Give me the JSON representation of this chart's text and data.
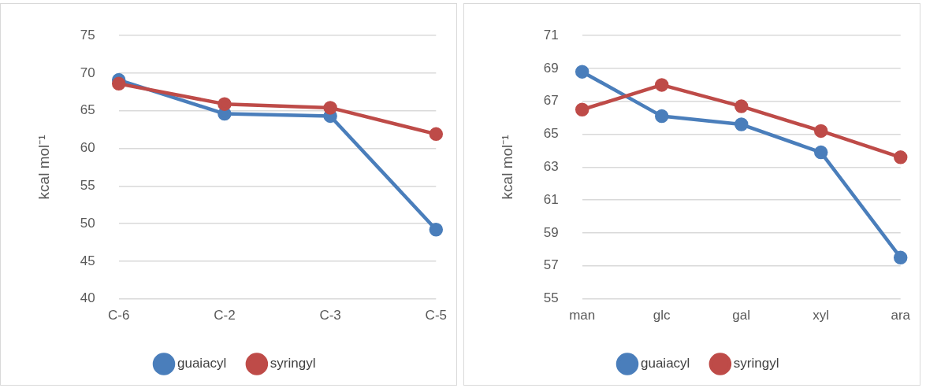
{
  "chart_data": [
    {
      "type": "line",
      "ylabel": "kcal mol⁻¹",
      "categories": [
        "C-6",
        "C-2",
        "C-3",
        "C-5"
      ],
      "ylim": [
        40,
        75
      ],
      "yticks": [
        40,
        45,
        50,
        55,
        60,
        65,
        70,
        75
      ],
      "grid": "y",
      "legend": "bottom",
      "marker": "circle",
      "series": [
        {
          "name": "guaiacyl",
          "color": "#4a7ebb",
          "values": [
            69.1,
            64.6,
            64.3,
            49.2
          ]
        },
        {
          "name": "syringyl",
          "color": "#be4b48",
          "values": [
            68.6,
            65.9,
            65.4,
            61.9
          ]
        }
      ]
    },
    {
      "type": "line",
      "ylabel": "kcal mol⁻¹",
      "categories": [
        "man",
        "glc",
        "gal",
        "xyl",
        "ara"
      ],
      "ylim": [
        55,
        71
      ],
      "yticks": [
        55,
        57,
        59,
        61,
        63,
        65,
        67,
        69,
        71
      ],
      "grid": "y",
      "legend": "bottom",
      "marker": "circle",
      "series": [
        {
          "name": "guaiacyl",
          "color": "#4a7ebb",
          "values": [
            68.8,
            66.1,
            65.6,
            63.9,
            57.5
          ]
        },
        {
          "name": "syringyl",
          "color": "#be4b48",
          "values": [
            66.5,
            68.0,
            66.7,
            65.2,
            63.6
          ]
        }
      ]
    }
  ]
}
